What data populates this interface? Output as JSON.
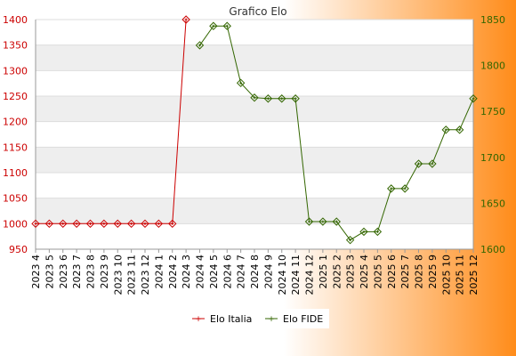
{
  "chart_data": {
    "type": "line",
    "title": "Grafico Elo",
    "categories": [
      "2023 4",
      "2023 5",
      "2023 6",
      "2023 7",
      "2023 8",
      "2023 9",
      "2023 10",
      "2023 11",
      "2023 12",
      "2024 1",
      "2024 2",
      "2024 3",
      "2024 4",
      "2024 5",
      "2024 6",
      "2024 7",
      "2024 8",
      "2024 9",
      "2024 10",
      "2024 11",
      "2024 12",
      "2025 1",
      "2025 2",
      "2025 3",
      "2025 4",
      "2025 5",
      "2025 6",
      "2025 7",
      "2025 8",
      "2025 9",
      "2025 10",
      "2025 11",
      "2025 12"
    ],
    "y_left": {
      "ylim": [
        950,
        1400
      ],
      "ticks": [
        950,
        1000,
        1050,
        1100,
        1150,
        1200,
        1250,
        1300,
        1350,
        1400
      ],
      "color": "#cc0000"
    },
    "y_right": {
      "ylim": [
        1600,
        1850
      ],
      "ticks": [
        1600,
        1650,
        1700,
        1750,
        1800,
        1850
      ],
      "color": "#336600"
    },
    "series": [
      {
        "name": "Elo Italia",
        "axis": "left",
        "color": "#cc0000",
        "values": [
          1000,
          1000,
          1000,
          1000,
          1000,
          1000,
          1000,
          1000,
          1000,
          1000,
          1000,
          1400,
          null,
          null,
          null,
          null,
          null,
          null,
          null,
          null,
          null,
          null,
          null,
          null,
          null,
          null,
          null,
          null,
          null,
          null,
          null,
          null,
          null
        ]
      },
      {
        "name": "Elo FIDE",
        "axis": "right",
        "color": "#336600",
        "values": [
          null,
          null,
          null,
          null,
          null,
          null,
          null,
          null,
          null,
          null,
          null,
          null,
          1822,
          1843,
          1843,
          1781,
          1765,
          1764,
          1764,
          1764,
          1630,
          1630,
          1630,
          1610,
          1619,
          1619,
          1666,
          1666,
          1693,
          1693,
          1730,
          1730,
          1764
        ]
      }
    ],
    "legend_position": "bottom-center",
    "grid": true
  },
  "colors": {
    "background_gradient_start": "#ffffff",
    "background_gradient_end": "#ff8c1a",
    "band": "#eeeeee"
  }
}
